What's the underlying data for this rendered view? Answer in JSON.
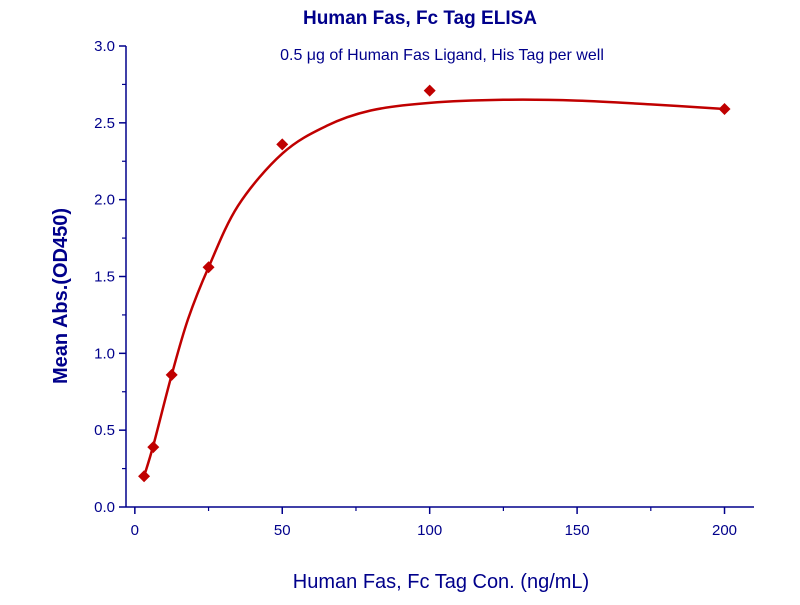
{
  "chart_data": {
    "type": "scatter",
    "title": "Human Fas, Fc Tag ELISA",
    "subtitle": "0.5 μg of Human Fas Ligand, His Tag per well",
    "xlabel": "Human Fas, Fc Tag Con. (ng/mL)",
    "ylabel": "Mean Abs.(OD450)",
    "xlim": [
      -3,
      210
    ],
    "ylim": [
      0,
      3.0
    ],
    "x_ticks": [
      0,
      50,
      100,
      150,
      200
    ],
    "x_tick_labels": [
      "0",
      "50",
      "100",
      "150",
      "200"
    ],
    "y_ticks": [
      0,
      0.5,
      1.0,
      1.5,
      2.0,
      2.5,
      3.0
    ],
    "y_tick_labels": [
      "0.0",
      "0.5",
      "1.0",
      "1.5",
      "2.0",
      "2.5",
      "3.0"
    ],
    "grid": false,
    "series": [
      {
        "x": [
          3.125,
          6.25,
          12.5,
          25,
          50,
          100,
          200
        ],
        "y": [
          0.2,
          0.39,
          0.86,
          1.56,
          2.36,
          2.71,
          2.59
        ],
        "marker": "diamond"
      }
    ],
    "fit_curve": {
      "x": [
        3.125,
        6.25,
        12.5,
        18,
        25,
        35,
        50,
        65,
        80,
        100,
        125,
        150,
        175,
        200
      ],
      "y": [
        0.2,
        0.4,
        0.86,
        1.22,
        1.56,
        1.96,
        2.3,
        2.48,
        2.58,
        2.63,
        2.65,
        2.645,
        2.62,
        2.59
      ]
    },
    "colors": {
      "axis": "#00008b",
      "text": "#00008b",
      "series": "#c00000"
    }
  }
}
